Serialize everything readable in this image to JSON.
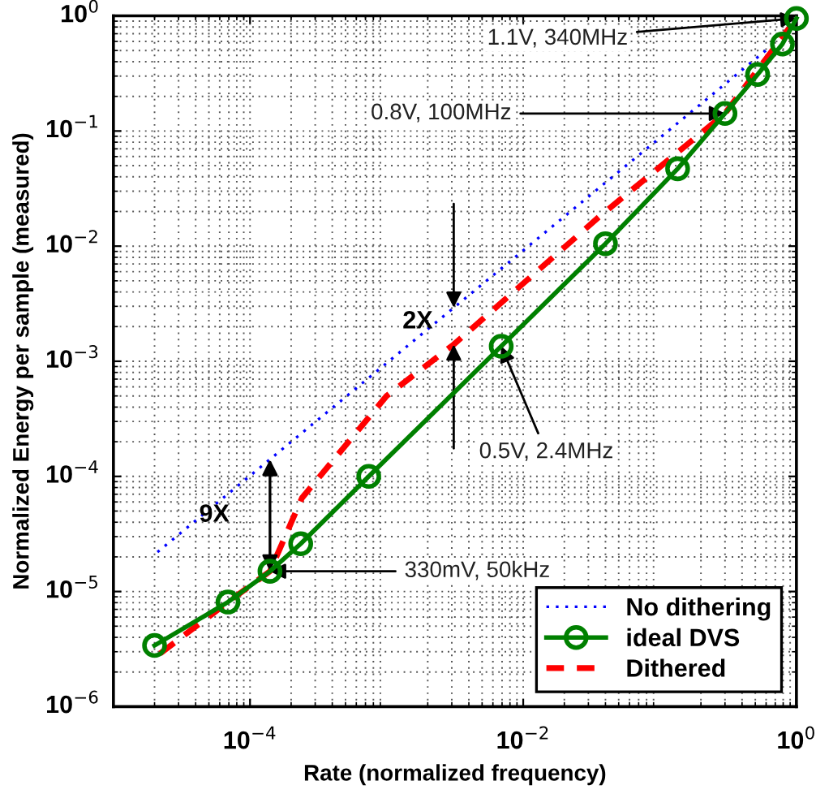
{
  "chart_data": {
    "type": "line",
    "xlabel": "Rate (normalized frequency)",
    "ylabel": "Normalized Energy per sample (measured)",
    "log": "xy",
    "grid": true,
    "legend": "bottom right",
    "xlim": [
      1e-05,
      1
    ],
    "ylim": [
      1e-06,
      1
    ],
    "xticks": [
      {
        "value": 0.0001,
        "label": "10$^{−4}$"
      },
      {
        "value": 0.01,
        "label": "10$^{−2}$"
      },
      {
        "value": 1,
        "label": "10$^{0}$"
      }
    ],
    "yticks": [
      {
        "value": 1e-06,
        "label": "10$^{−6}$"
      },
      {
        "value": 1e-05,
        "label": "10$^{−5}$"
      },
      {
        "value": 0.0001,
        "label": "10$^{−4}$"
      },
      {
        "value": 0.001,
        "label": "10$^{−3}$"
      },
      {
        "value": 0.01,
        "label": "10$^{−2}$"
      },
      {
        "value": 0.1,
        "label": "10$^{−1}$"
      },
      {
        "value": 1,
        "label": "10$^{0}$"
      }
    ],
    "series": [
      {
        "name": "No dithering",
        "color": "#0000ff",
        "line_style": "dotted",
        "marker": "none",
        "x": [
          2.1e-05,
          0.62
        ],
        "values": [
          2.2e-05,
          0.52
        ]
      },
      {
        "name": "ideal DVS",
        "color": "#008000",
        "line_style": "solid",
        "marker": "circle",
        "x": [
          2e-05,
          6.9e-05,
          0.00014,
          0.000235,
          0.00074,
          0.0069,
          0.04,
          0.135,
          0.3,
          0.52,
          0.79,
          1.0
        ],
        "values": [
          3.4e-06,
          8.1e-06,
          1.5e-05,
          2.6e-05,
          0.0001,
          0.00135,
          0.0105,
          0.047,
          0.142,
          0.31,
          0.57,
          0.95
        ]
      },
      {
        "name": "Dithered",
        "color": "#ff0000",
        "line_style": "dashed",
        "marker": "none",
        "x": [
          2.2e-05,
          6.9e-05,
          0.00014,
          0.00024,
          0.001,
          0.0031,
          0.036,
          0.3,
          1.0
        ],
        "values": [
          2.9e-06,
          8.1e-06,
          1.5e-05,
          6.5e-05,
          0.0005,
          0.0014,
          0.018,
          0.142,
          0.95
        ]
      }
    ],
    "annotations": [
      {
        "text": "1.1V, 340MHz",
        "x": 1.0,
        "y": 0.95
      },
      {
        "text": "0.8V, 100MHz",
        "x": 0.3,
        "y": 0.142
      },
      {
        "text": "0.5V, 2.4MHz",
        "x": 0.0069,
        "y": 0.00135
      },
      {
        "text": "330mV, 50kHz",
        "x": 0.00014,
        "y": 1.5e-05
      },
      {
        "text": "2X",
        "x": 0.0031,
        "y": 0.0014
      },
      {
        "text": "9X",
        "x": 0.00014,
        "y": 1.5e-05
      }
    ]
  }
}
